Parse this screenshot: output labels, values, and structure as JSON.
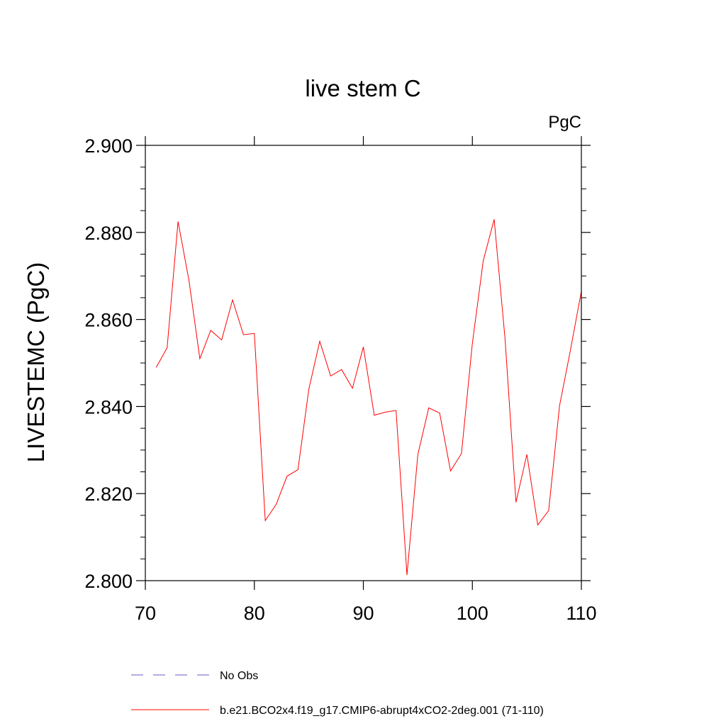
{
  "chart_data": {
    "type": "line",
    "title": "live stem C",
    "units_label": "PgC",
    "ylabel": "LIVESTEMC  (PgC)",
    "xlabel": "",
    "xlim": [
      70,
      110
    ],
    "ylim": [
      2.8,
      2.9
    ],
    "x_ticks": [
      70,
      80,
      90,
      100,
      110
    ],
    "x_tick_labels": [
      "70",
      "80",
      "90",
      "100",
      "110"
    ],
    "y_ticks": [
      2.8,
      2.82,
      2.84,
      2.86,
      2.88,
      2.9
    ],
    "y_tick_labels": [
      "2.800",
      "2.820",
      "2.840",
      "2.860",
      "2.880",
      "2.900"
    ],
    "grid": false,
    "legend_position": "bottom",
    "series": [
      {
        "name": "b.e21.BCO2x4.f19_g17.CMIP6-abrupt4xCO2-2deg.001 (71-110)",
        "color": "#ff0000",
        "style": "solid",
        "x": [
          71,
          72,
          73,
          74,
          75,
          76,
          77,
          78,
          79,
          80,
          81,
          82,
          83,
          84,
          85,
          86,
          87,
          88,
          89,
          90,
          91,
          92,
          93,
          94,
          95,
          96,
          97,
          98,
          99,
          100,
          101,
          102,
          103,
          104,
          105,
          106,
          107,
          108,
          109,
          110
        ],
        "y": [
          2.849,
          2.8535,
          2.8825,
          2.869,
          2.851,
          2.8575,
          2.8553,
          2.8645,
          2.8565,
          2.8568,
          2.8138,
          2.8175,
          2.824,
          2.8255,
          2.844,
          2.855,
          2.847,
          2.8485,
          2.8442,
          2.8537,
          2.838,
          2.8387,
          2.8391,
          2.8013,
          2.829,
          2.8397,
          2.8385,
          2.8252,
          2.8292,
          2.8545,
          2.8735,
          2.883,
          2.8555,
          2.818,
          2.829,
          2.8128,
          2.8161,
          2.8402,
          2.853,
          2.8665
        ]
      }
    ],
    "legend": [
      {
        "label": "No Obs",
        "color": "#6a5acd",
        "style": "dashed"
      },
      {
        "label": "b.e21.BCO2x4.f19_g17.CMIP6-abrupt4xCO2-2deg.001 (71-110)",
        "color": "#ff0000",
        "style": "solid"
      }
    ]
  }
}
